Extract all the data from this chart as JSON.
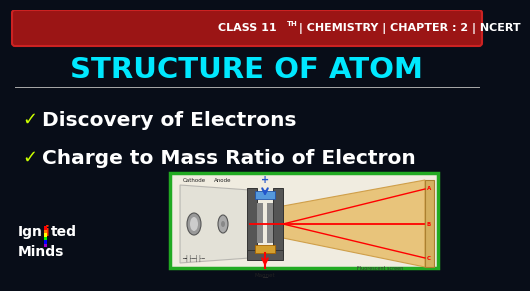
{
  "bg_color": "#080d18",
  "header_text": "CLASS 11TH | CHEMISTRY | CHAPTER : 2 | NCERT",
  "header_bg": "#9b1515",
  "header_border": "#cc2222",
  "header_text_color": "#ffffff",
  "title_text": "STRUCTURE OF ATOM",
  "title_color": "#00e8ff",
  "bullet1": "Discovery of Electrons",
  "bullet2": "Charge to Mass Ratio of Electron",
  "bullet_color": "#ffffff",
  "check_color": "#ccff00",
  "divider_color": "#aaaaaa",
  "image_border_color": "#22aa22",
  "image_bg": "#f0ece0",
  "brand_i_color": "#ff2200"
}
